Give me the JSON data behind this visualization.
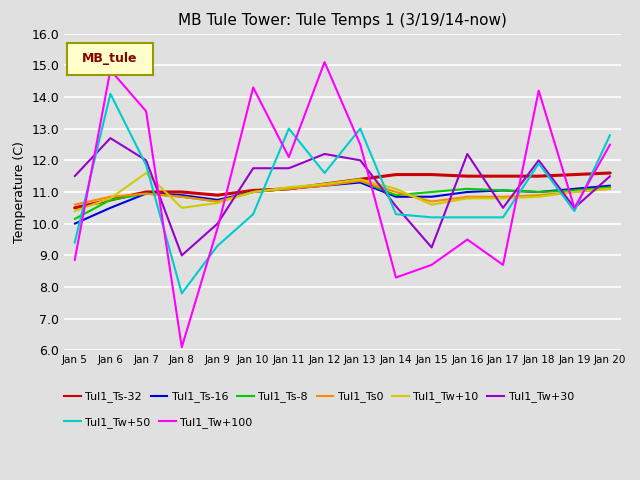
{
  "title": "MB Tule Tower: Tule Temps 1 (3/19/14-now)",
  "ylabel": "Temperature (C)",
  "ylim": [
    6.0,
    16.0
  ],
  "yticks": [
    6.0,
    7.0,
    8.0,
    9.0,
    10.0,
    11.0,
    12.0,
    13.0,
    14.0,
    15.0,
    16.0
  ],
  "bg_color": "#e0e0e0",
  "series_order": [
    "Tul1_Ts-32",
    "Tul1_Ts-16",
    "Tul1_Ts-8",
    "Tul1_Ts0",
    "Tul1_Tw+10",
    "Tul1_Tw+30",
    "Tul1_Tw+50",
    "Tul1_Tw+100"
  ],
  "series": {
    "Tul1_Ts-32": {
      "color": "#cc0000",
      "linewidth": 2.2,
      "y": [
        10.5,
        10.75,
        11.0,
        11.0,
        10.9,
        11.05,
        11.1,
        11.25,
        11.4,
        11.55,
        11.55,
        11.5,
        11.5,
        11.5,
        11.55,
        11.6
      ]
    },
    "Tul1_Ts-16": {
      "color": "#0000dd",
      "linewidth": 1.5,
      "y": [
        10.0,
        10.5,
        10.95,
        10.9,
        10.75,
        11.0,
        11.1,
        11.2,
        11.3,
        10.85,
        10.85,
        11.0,
        11.05,
        11.0,
        11.1,
        11.2
      ]
    },
    "Tul1_Ts-8": {
      "color": "#00cc00",
      "linewidth": 1.5,
      "y": [
        10.15,
        10.75,
        10.95,
        10.85,
        10.7,
        11.0,
        11.1,
        11.25,
        11.35,
        10.9,
        11.0,
        11.1,
        11.05,
        11.0,
        11.05,
        11.15
      ]
    },
    "Tul1_Ts0": {
      "color": "#ff8800",
      "linewidth": 1.5,
      "y": [
        10.6,
        10.85,
        10.95,
        10.85,
        10.7,
        11.0,
        11.1,
        11.2,
        11.35,
        11.0,
        10.7,
        10.85,
        10.85,
        10.9,
        11.0,
        11.1
      ]
    },
    "Tul1_Tw+10": {
      "color": "#cccc00",
      "linewidth": 1.5,
      "y": [
        10.4,
        10.8,
        11.6,
        10.5,
        10.65,
        11.0,
        11.15,
        11.25,
        11.4,
        11.1,
        10.6,
        10.8,
        10.8,
        10.85,
        11.0,
        11.1
      ]
    },
    "Tul1_Tw+30": {
      "color": "#9900cc",
      "linewidth": 1.5,
      "y": [
        11.5,
        12.7,
        12.0,
        9.0,
        10.0,
        11.75,
        11.75,
        12.2,
        12.0,
        10.55,
        9.25,
        12.2,
        10.5,
        12.0,
        10.5,
        11.5
      ]
    },
    "Tul1_Tw+50": {
      "color": "#00cccc",
      "linewidth": 1.5,
      "y": [
        9.4,
        14.1,
        11.85,
        7.8,
        9.3,
        10.3,
        13.0,
        11.6,
        13.0,
        10.3,
        10.2,
        10.2,
        10.2,
        11.9,
        10.4,
        12.8
      ]
    },
    "Tul1_Tw+100": {
      "color": "#ff00ff",
      "linewidth": 1.5,
      "y": [
        8.85,
        14.85,
        13.55,
        6.1,
        9.85,
        14.3,
        12.1,
        15.1,
        12.5,
        8.3,
        8.7,
        9.5,
        8.7,
        14.2,
        10.5,
        12.5
      ]
    }
  },
  "xtick_labels": [
    "Jan 5",
    "Jan 6",
    "Jan 7",
    "Jan 8",
    "Jan 9",
    "Jan 10",
    "Jan 11",
    "Jan 12",
    "Jan 13",
    "Jan 14",
    "Jan 15",
    "Jan 16",
    "Jan 17",
    "Jan 18",
    "Jan 19",
    "Jan 20"
  ],
  "legend_label": "MB_tule",
  "legend_box_color": "#ffffcc",
  "legend_text_color": "#880000",
  "legend_border_color": "#999900",
  "legend_ncol": 6,
  "legend_row2": [
    "Tul1_Tw+50",
    "Tul1_Tw+100"
  ]
}
